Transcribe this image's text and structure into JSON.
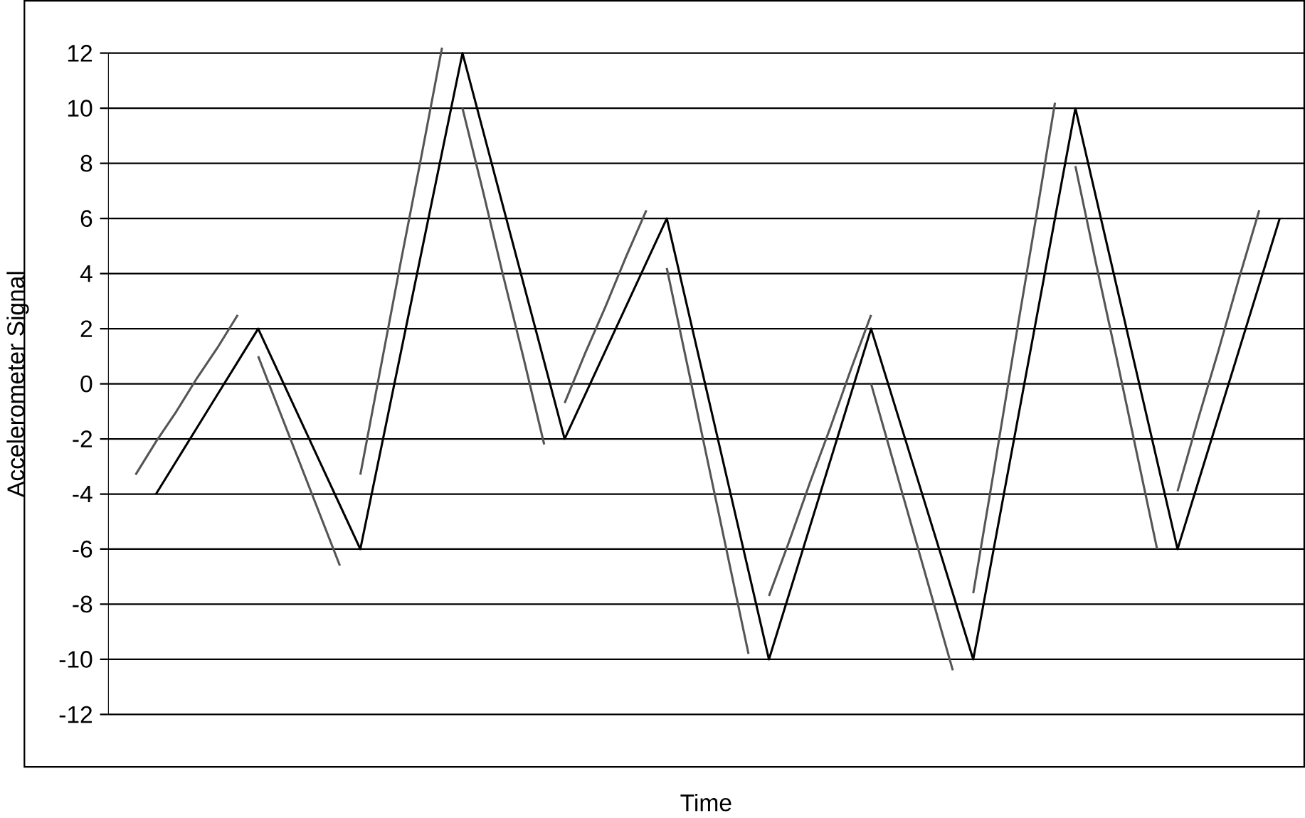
{
  "chart_data": {
    "type": "line",
    "xlabel": "Time",
    "ylabel": "Accelerometer Signal",
    "categories": [
      null,
      null,
      null,
      null,
      null,
      null,
      null,
      null,
      null,
      null,
      null,
      null,
      null,
      null,
      null,
      null,
      null,
      null,
      null,
      null,
      null,
      null,
      null,
      null,
      null,
      null,
      null,
      null,
      null,
      null,
      null,
      null,
      null,
      null,
      null,
      null,
      null,
      null,
      null,
      null,
      null,
      null,
      null,
      null,
      null,
      null,
      null,
      null,
      null,
      null,
      null,
      null,
      null,
      null,
      null,
      null,
      null
    ],
    "ylim": [
      -13.9,
      13.9
    ],
    "yticks": [
      -12,
      -10,
      -8,
      -6,
      -4,
      -2,
      0,
      2,
      4,
      6,
      8,
      10,
      12
    ],
    "tick_labels": "y",
    "grid": "y",
    "marker": "none",
    "line_style": "solid",
    "series": [
      {
        "color": "#000000",
        "values": [
          null,
          -4,
          -2.8,
          -1.6,
          -0.4,
          0.8,
          2,
          0.4,
          -1.2,
          -2.8,
          -4.4,
          -6,
          -2.4,
          1.2,
          4.8,
          8.4,
          12,
          9.2,
          6.4,
          3.6,
          0.8,
          -2,
          -0.4,
          1.2,
          2.8,
          4.4,
          6,
          2.8,
          -0.4,
          -3.6,
          -6.8,
          -10,
          -7.6,
          -5.2,
          -2.8,
          -0.4,
          2,
          -0.4,
          -2.8,
          -5.2,
          -7.6,
          -10,
          -6,
          -2,
          2,
          6,
          10,
          6.8,
          3.6,
          0.4,
          -2.8,
          -6,
          -3.6,
          -1.2,
          1.2,
          3.6,
          6
        ]
      },
      {
        "color": "#555555",
        "values": [
          -3.3,
          -2.1,
          -1.0,
          0.2,
          1.3,
          2.5,
          null,
          null,
          null,
          null,
          null,
          -3.3,
          0.6,
          4.5,
          8.3,
          12.2,
          null,
          null,
          null,
          null,
          null,
          -0.7,
          1.1,
          2.8,
          4.6,
          6.3,
          null,
          null,
          null,
          null,
          null,
          -7.7,
          -5.7,
          -3.6,
          -1.6,
          0.5,
          2.5,
          null,
          null,
          null,
          null,
          -7.6,
          -3.2,
          1.3,
          5.7,
          10.2,
          null,
          null,
          null,
          null,
          null,
          -3.9,
          -1.3,
          1.2,
          3.8,
          6.3,
          null
        ]
      },
      {
        "color": "#555555",
        "values": [
          null,
          null,
          null,
          null,
          null,
          null,
          1,
          -0.9,
          -2.8,
          -4.7,
          -6.6,
          null,
          null,
          null,
          null,
          null,
          10,
          7,
          3.9,
          0.9,
          -2.2,
          null,
          null,
          null,
          null,
          null,
          4.2,
          0.7,
          -2.8,
          -6.3,
          -9.8,
          null,
          null,
          null,
          null,
          null,
          0,
          -2.6,
          -5.2,
          -7.8,
          -10.4,
          null,
          null,
          null,
          null,
          null,
          7.9,
          4.4,
          1,
          -2.5,
          -6,
          null,
          null,
          null,
          null,
          null,
          null
        ]
      }
    ]
  }
}
